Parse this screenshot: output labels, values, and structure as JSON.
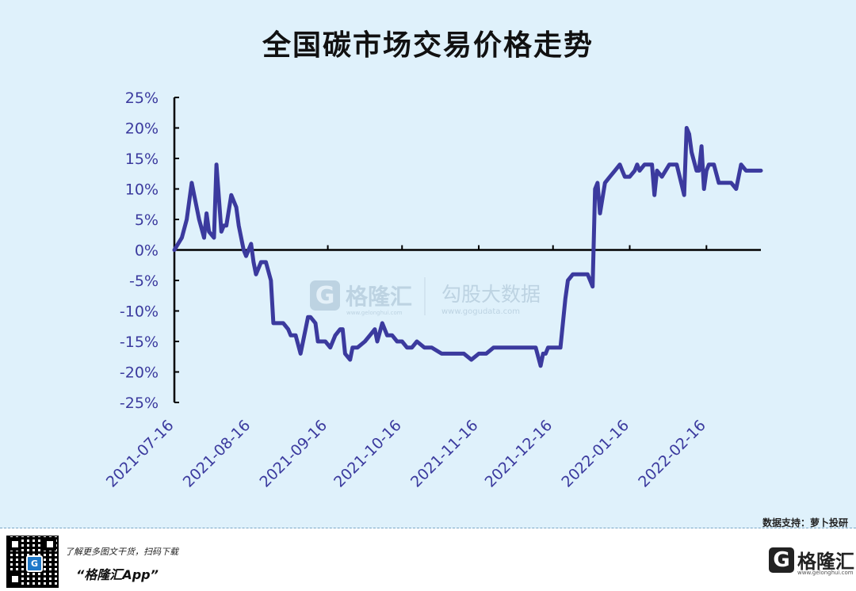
{
  "chart_data": {
    "type": "line",
    "title": "全国碳市场交易价格走势",
    "xlabel": "",
    "ylabel": "",
    "ylim": [
      -25,
      25
    ],
    "yticks": [
      "25%",
      "20%",
      "15%",
      "10%",
      "5%",
      "0%",
      "-5%",
      "-10%",
      "-15%",
      "-20%",
      "-25%"
    ],
    "ytick_values": [
      25,
      20,
      15,
      10,
      5,
      0,
      -5,
      -10,
      -15,
      -20,
      -25
    ],
    "xticks": [
      "2021-07-16",
      "2021-08-16",
      "2021-09-16",
      "2021-10-16",
      "2021-11-16",
      "2021-12-16",
      "2022-01-16",
      "2022-02-16"
    ],
    "x_range": [
      "2021-07-16",
      "2022-03-10"
    ],
    "grid": false,
    "legend": "none",
    "series_color": "#3b3a9e",
    "series": [
      {
        "x": [
          "2021-07-16",
          "2021-07-19",
          "2021-07-21",
          "2021-07-23",
          "2021-07-24",
          "2021-07-26",
          "2021-07-28",
          "2021-07-29",
          "2021-07-30",
          "2021-08-01",
          "2021-08-02",
          "2021-08-04",
          "2021-08-05",
          "2021-08-06",
          "2021-08-08",
          "2021-08-10",
          "2021-08-11",
          "2021-08-13",
          "2021-08-14",
          "2021-08-16",
          "2021-08-17",
          "2021-08-18",
          "2021-08-20",
          "2021-08-22",
          "2021-08-24",
          "2021-08-25",
          "2021-08-26",
          "2021-08-28",
          "2021-08-29",
          "2021-08-31",
          "2021-09-01",
          "2021-09-03",
          "2021-09-05",
          "2021-09-07",
          "2021-09-08",
          "2021-09-09",
          "2021-09-11",
          "2021-09-12",
          "2021-09-15",
          "2021-09-17",
          "2021-09-19",
          "2021-09-21",
          "2021-09-22",
          "2021-09-23",
          "2021-09-25",
          "2021-09-26",
          "2021-09-28",
          "2021-10-01",
          "2021-10-03",
          "2021-10-05",
          "2021-10-06",
          "2021-10-08",
          "2021-10-10",
          "2021-10-12",
          "2021-10-14",
          "2021-10-16",
          "2021-10-18",
          "2021-10-20",
          "2021-10-22",
          "2021-10-25",
          "2021-10-28",
          "2021-11-01",
          "2021-11-04",
          "2021-11-07",
          "2021-11-10",
          "2021-11-13",
          "2021-11-16",
          "2021-11-19",
          "2021-11-22",
          "2021-11-25",
          "2021-11-28",
          "2021-12-01",
          "2021-12-04",
          "2021-12-07",
          "2021-12-09",
          "2021-12-11",
          "2021-12-12",
          "2021-12-13",
          "2021-12-14",
          "2021-12-17",
          "2021-12-19",
          "2021-12-21",
          "2021-12-22",
          "2021-12-24",
          "2021-12-25",
          "2021-12-28",
          "2021-12-30",
          "2021-12-31",
          "2022-01-01",
          "2022-01-02",
          "2022-01-03",
          "2022-01-04",
          "2022-01-06",
          "2022-01-08",
          "2022-01-10",
          "2022-01-12",
          "2022-01-13",
          "2022-01-14",
          "2022-01-16",
          "2022-01-18",
          "2022-01-19",
          "2022-01-20",
          "2022-01-22",
          "2022-01-24",
          "2022-01-25",
          "2022-01-26",
          "2022-01-27",
          "2022-01-29",
          "2022-02-01",
          "2022-02-04",
          "2022-02-07",
          "2022-02-08",
          "2022-02-09",
          "2022-02-10",
          "2022-02-12",
          "2022-02-13",
          "2022-02-14",
          "2022-02-15",
          "2022-02-16",
          "2022-02-17",
          "2022-02-19",
          "2022-02-21",
          "2022-02-23",
          "2022-02-25",
          "2022-02-26",
          "2022-02-28",
          "2022-03-02",
          "2022-03-04",
          "2022-03-06",
          "2022-03-08",
          "2022-03-10"
        ],
        "values": [
          0,
          2,
          5,
          11,
          9,
          5,
          2,
          6,
          3,
          2,
          14,
          3,
          4,
          4,
          9,
          7,
          4,
          0,
          -1,
          1,
          -2,
          -4,
          -2,
          -2,
          -5,
          -12,
          -12,
          -12,
          -12,
          -13,
          -14,
          -14,
          -17,
          -13,
          -11,
          -11,
          -12,
          -15,
          -15,
          -16,
          -14,
          -13,
          -13,
          -17,
          -18,
          -16,
          -16,
          -15,
          -14,
          -13,
          -15,
          -12,
          -14,
          -14,
          -15,
          -15,
          -16,
          -16,
          -15,
          -16,
          -16,
          -17,
          -17,
          -17,
          -17,
          -18,
          -17,
          -17,
          -16,
          -16,
          -16,
          -16,
          -16,
          -16,
          -16,
          -19,
          -17,
          -17,
          -16,
          -16,
          -16,
          -8,
          -5,
          -4,
          -4,
          -4,
          -4,
          -5,
          -6,
          10,
          11,
          6,
          11,
          12,
          13,
          14,
          13,
          12,
          12,
          13,
          14,
          13,
          14,
          14,
          14,
          9,
          13,
          12,
          14,
          14,
          9,
          20,
          19,
          16,
          13,
          13,
          17,
          10,
          13,
          14,
          14,
          11,
          11,
          11,
          11,
          10,
          14,
          13,
          13,
          13,
          13
        ]
      }
    ]
  },
  "watermark": {
    "brand1": "格隆汇",
    "brand1_url": "www.gelonghui.com",
    "brand2": "勾股大数据",
    "brand2_url": "www.gogudata.com"
  },
  "source_note": "数据支持：萝卜投研",
  "footer": {
    "line1": "了解更多图文干货，扫码下载",
    "line2": "“格隆汇App”",
    "brand": "格隆汇",
    "brand_url": "www.gelonghui.com",
    "qr_logo": "G",
    "logo_letter": "G"
  },
  "icons": [
    "qr-code-icon",
    "gelonghui-logo-icon"
  ]
}
